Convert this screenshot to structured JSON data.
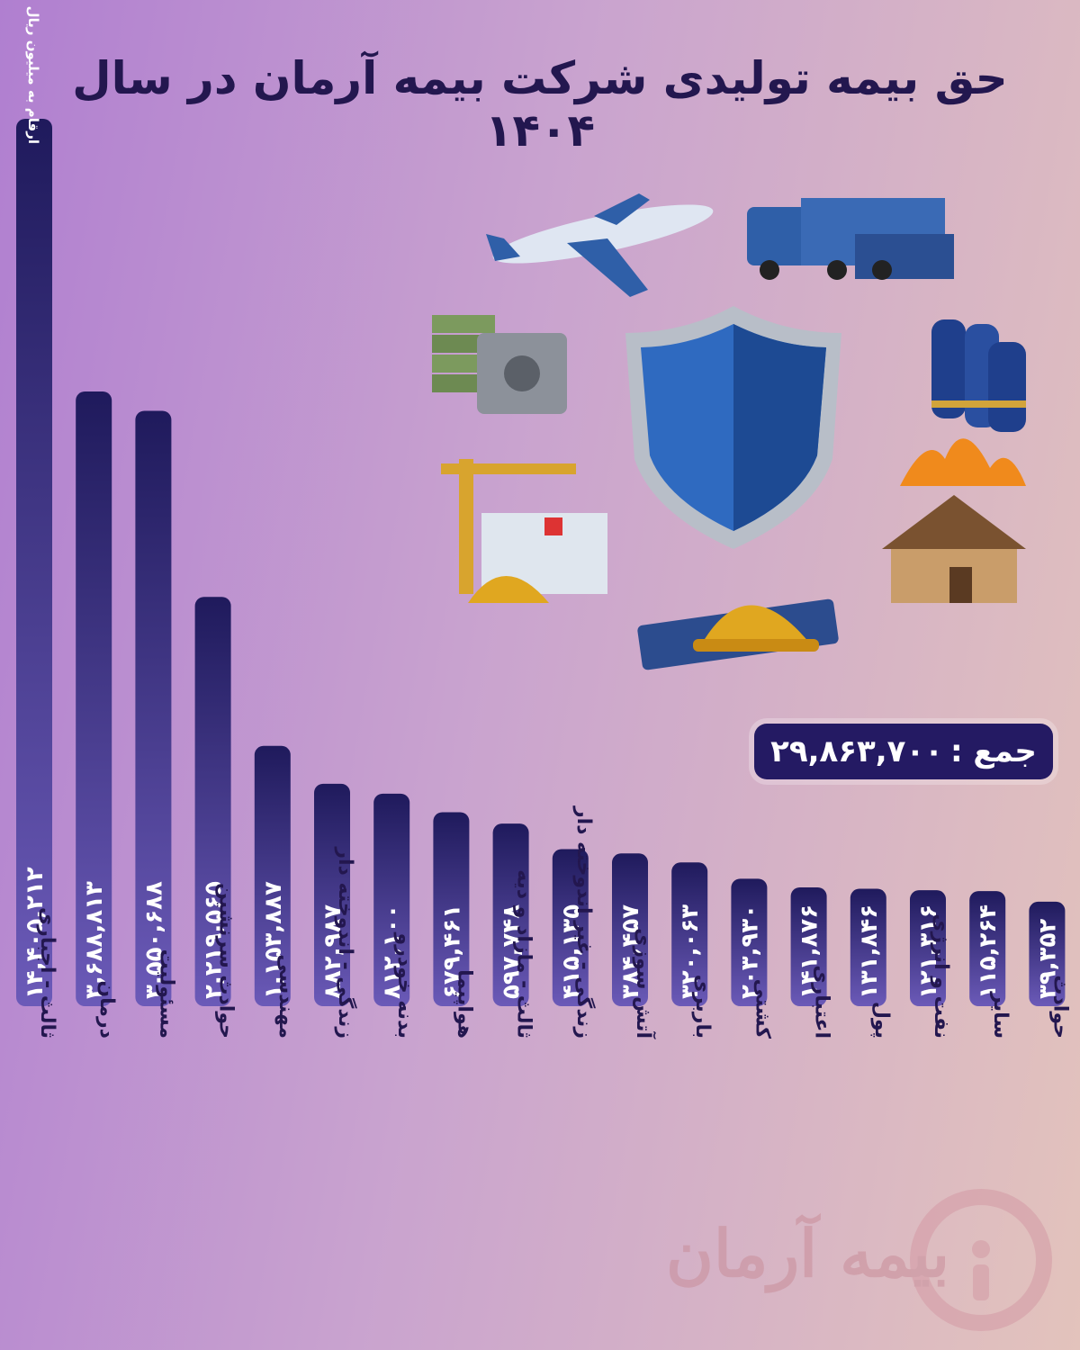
{
  "title": "حق بیمه تولیدی شرکت بیمه آرمان در سال ۱۴۰۴",
  "total": {
    "label": "جمع :",
    "value": "۲۹,۸۶۳,۷۰۰"
  },
  "logo_text": "بیمه آرمان",
  "colors": {
    "bar_top": "#1f1a5c",
    "bar_bottom": "#6b5ab8",
    "title": "#23174f",
    "total_bg": "#241a63"
  },
  "chart_data": {
    "type": "bar",
    "title": "حق بیمه تولیدی شرکت بیمه آرمان در سال ۱۴۰۴",
    "unit_note": "ارقام به میلیون ریال",
    "categories": [
      "ثالث - اجباری",
      "درمان",
      "مسئولیت",
      "حوادث سرنشین",
      "مهندسی",
      "زندگی - اندوخته دار",
      "بدنه خودرو",
      "هواپیما",
      "ثالث - مازاد و دیه",
      "زندگی - غیر اندوخته دار",
      "آتش سوزی",
      "باربری",
      "کشتی",
      "اعتباری",
      "پول",
      "نفت و انرژی",
      "سایر",
      "حوادث"
    ],
    "values": [
      14405212,
      3688813,
      3550688,
      2219565,
      1153887,
      882987,
      812100,
      679461,
      597748,
      415135,
      384457,
      320063,
      203930,
      141876,
      131846,
      121316,
      115264,
      39352
    ],
    "value_labels": [
      "۱۴,۴۰۵,۲۱۲",
      "۳,۶۸۸,۸۱۳",
      "۳,۵۵۰,۶۸۸",
      "۲,۲۱۹,۵۶۵",
      "۱,۱۵۳,۸۸۷",
      "۸۸۲,۹۸۷",
      "۸۱۲,۱۰۰",
      "۶۷۹,۴۶۱",
      "۵۹۷,۷۴۸",
      "۴۱۵,۱۳۵",
      "۳۸۴,۴۵۷",
      "۳۲۰,۰۶۳",
      "۲۰۳,۹۳۰",
      "۱۴۱,۸۷۶",
      "۱۳۱,۸۴۶",
      "۱۲۱,۳۱۶",
      "۱۱۵,۲۶۴",
      "۳۹,۳۵۲"
    ],
    "xlabel": "",
    "ylabel": ""
  },
  "illustrations": [
    "airplane-icon",
    "truck-icon",
    "money-safe-icon",
    "shield-icon",
    "gas-cylinders-icon",
    "crane-hospital-icon",
    "helmet-blueprint-icon",
    "burning-house-icon"
  ]
}
